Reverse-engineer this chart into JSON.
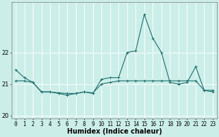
{
  "xlabel": "Humidex (Indice chaleur)",
  "background_color": "#cceee8",
  "grid_color": "#ffffff",
  "line_color": "#1a6b6b",
  "x_data": [
    0,
    1,
    2,
    3,
    4,
    5,
    6,
    7,
    8,
    9,
    10,
    11,
    12,
    13,
    14,
    15,
    16,
    17,
    18,
    19,
    20,
    21,
    22,
    23
  ],
  "y_series1": [
    21.45,
    21.2,
    21.05,
    20.75,
    20.75,
    20.7,
    20.65,
    20.7,
    20.75,
    20.7,
    21.15,
    21.2,
    21.2,
    22.0,
    22.05,
    23.2,
    22.45,
    22.0,
    21.05,
    21.0,
    21.05,
    21.55,
    20.8,
    20.8
  ],
  "y_series2": [
    21.1,
    21.1,
    21.05,
    20.75,
    20.75,
    20.72,
    20.7,
    20.7,
    20.75,
    20.72,
    21.0,
    21.05,
    21.1,
    21.1,
    21.1,
    21.1,
    21.1,
    21.1,
    21.1,
    21.1,
    21.1,
    21.1,
    20.8,
    20.75
  ],
  "ylim": [
    19.9,
    23.6
  ],
  "yticks": [
    20,
    21,
    22
  ],
  "xticks": [
    0,
    1,
    2,
    3,
    4,
    5,
    6,
    7,
    8,
    9,
    10,
    11,
    12,
    13,
    14,
    15,
    16,
    17,
    18,
    19,
    20,
    21,
    22,
    23
  ],
  "label_fontsize": 7,
  "tick_fontsize": 5.5
}
